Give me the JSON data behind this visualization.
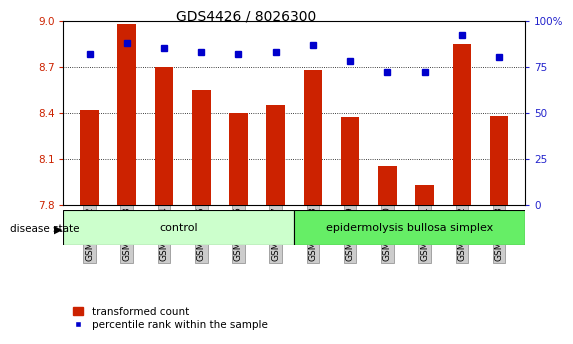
{
  "title": "GDS4426 / 8026300",
  "samples": [
    "GSM700422",
    "GSM700423",
    "GSM700424",
    "GSM700425",
    "GSM700426",
    "GSM700427",
    "GSM700428",
    "GSM700429",
    "GSM700430",
    "GSM700431",
    "GSM700432",
    "GSM700433"
  ],
  "bar_values": [
    8.42,
    8.98,
    8.7,
    8.55,
    8.4,
    8.45,
    8.68,
    8.37,
    8.05,
    7.93,
    8.85,
    8.38
  ],
  "dot_values": [
    82,
    88,
    85,
    83,
    82,
    83,
    87,
    78,
    72,
    72,
    92,
    80
  ],
  "ylim_left": [
    7.8,
    9.0
  ],
  "ylim_right": [
    0,
    100
  ],
  "yticks_left": [
    7.8,
    8.1,
    8.4,
    8.7,
    9.0
  ],
  "yticks_right": [
    0,
    25,
    50,
    75,
    100
  ],
  "ytick_labels_right": [
    "0",
    "25",
    "50",
    "75",
    "100%"
  ],
  "grid_lines": [
    8.1,
    8.4,
    8.7
  ],
  "bar_color": "#cc2200",
  "dot_color": "#0000cc",
  "bar_bottom": 7.8,
  "control_count": 6,
  "control_label": "control",
  "disease_label": "epidermolysis bullosa simplex",
  "disease_state_label": "disease state",
  "legend_bar_label": "transformed count",
  "legend_dot_label": "percentile rank within the sample",
  "control_bg": "#ccffcc",
  "disease_bg": "#66ee66",
  "sample_bg": "#cccccc",
  "right_axis_color": "#2222cc",
  "left_axis_color": "#cc2200",
  "fig_width": 5.63,
  "fig_height": 3.54,
  "dpi": 100
}
